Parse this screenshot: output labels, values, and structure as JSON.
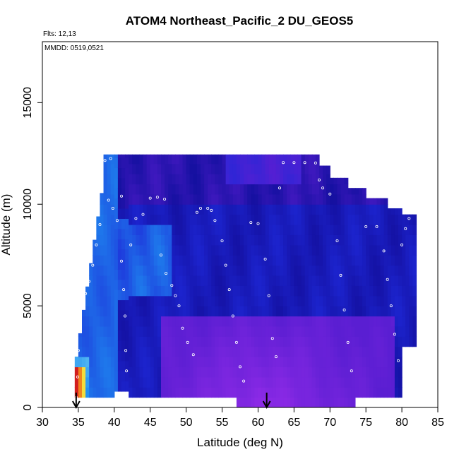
{
  "chart_data": {
    "type": "heatmap",
    "title": "ATOM4 Northeast_Pacific_2 DU_GEOS5",
    "annotations": [
      "Flts: 12,13",
      "MMDD: 0519,0521"
    ],
    "xlabel": "Latitude (deg N)",
    "ylabel": "Altitude (m)",
    "xlim": [
      30,
      85
    ],
    "ylim": [
      0,
      18000
    ],
    "xticks": [
      30,
      35,
      40,
      45,
      50,
      55,
      60,
      65,
      70,
      75,
      80,
      85
    ],
    "yticks": [
      0,
      5000,
      10000,
      15000
    ],
    "grid": false,
    "legend": "none",
    "arrows_at_latitude": [
      34.7,
      61.2
    ],
    "colors": {
      "dark_blue": "#1410a0",
      "blue": "#1e28d8",
      "light_blue": "#1e8cf0",
      "purple": "#5a1ed2",
      "violet": "#8c2ae6",
      "red": "#d21e1e",
      "orange": "#f0821e",
      "yellow": "#f5dc3c",
      "cyan": "#8ce6f5"
    },
    "flight_track": [
      [
        34.7,
        500
      ],
      [
        34.9,
        1500
      ],
      [
        35.0,
        2800
      ],
      [
        35.2,
        4000
      ],
      [
        35.4,
        5000
      ],
      [
        36.0,
        5600
      ],
      [
        36.5,
        6200
      ],
      [
        37.0,
        7000
      ],
      [
        37.5,
        8000
      ],
      [
        38.0,
        9000
      ],
      [
        38.3,
        11500
      ],
      [
        38.7,
        12150
      ],
      [
        39.5,
        12250
      ],
      [
        39.2,
        10200
      ],
      [
        39.8,
        9800
      ],
      [
        40.4,
        9200
      ],
      [
        41.0,
        10400
      ],
      [
        41.0,
        7200
      ],
      [
        41.3,
        5800
      ],
      [
        41.5,
        4500
      ],
      [
        41.6,
        2800
      ],
      [
        41.7,
        1800
      ],
      [
        41.8,
        700
      ],
      [
        42.3,
        8000
      ],
      [
        43.0,
        9300
      ],
      [
        44.0,
        9500
      ],
      [
        45.0,
        10300
      ],
      [
        46.0,
        10350
      ],
      [
        47.0,
        10250
      ],
      [
        46.5,
        7500
      ],
      [
        47.2,
        6600
      ],
      [
        48.0,
        6000
      ],
      [
        48.5,
        5500
      ],
      [
        49.0,
        5000
      ],
      [
        49.5,
        3900
      ],
      [
        50.2,
        3200
      ],
      [
        51.0,
        2600
      ],
      [
        51.5,
        9600
      ],
      [
        52.0,
        9800
      ],
      [
        53.0,
        9800
      ],
      [
        53.5,
        9700
      ],
      [
        54.0,
        9200
      ],
      [
        55.0,
        8200
      ],
      [
        55.5,
        7000
      ],
      [
        56.0,
        5800
      ],
      [
        56.5,
        4500
      ],
      [
        57.0,
        3200
      ],
      [
        57.5,
        2000
      ],
      [
        58.0,
        1300
      ],
      [
        59.0,
        9100
      ],
      [
        60.0,
        9050
      ],
      [
        61.0,
        7300
      ],
      [
        61.5,
        5500
      ],
      [
        62.0,
        3400
      ],
      [
        62.5,
        2500
      ],
      [
        63.0,
        10800
      ],
      [
        63.5,
        12050
      ],
      [
        65.0,
        12050
      ],
      [
        66.5,
        12050
      ],
      [
        68.0,
        12030
      ],
      [
        68.5,
        11200
      ],
      [
        69.0,
        10800
      ],
      [
        70.0,
        10500
      ],
      [
        71.0,
        8200
      ],
      [
        71.5,
        6500
      ],
      [
        72.0,
        4800
      ],
      [
        72.5,
        3200
      ],
      [
        73.0,
        1800
      ],
      [
        75.0,
        8900
      ],
      [
        76.5,
        8900
      ],
      [
        77.5,
        7700
      ],
      [
        78.0,
        6300
      ],
      [
        78.5,
        5000
      ],
      [
        79.0,
        3600
      ],
      [
        79.5,
        2300
      ],
      [
        80.0,
        8000
      ],
      [
        80.5,
        8800
      ],
      [
        81.0,
        9300
      ]
    ]
  }
}
